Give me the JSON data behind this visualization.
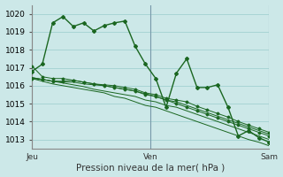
{
  "title": "",
  "xlabel": "Pression niveau de la mer( hPa )",
  "bg_color": "#cce8e8",
  "grid_color": "#99cccc",
  "line_color": "#1a6620",
  "ylim": [
    1012.5,
    1020.5
  ],
  "xlim": [
    0,
    48
  ],
  "yticks": [
    1013,
    1014,
    1015,
    1016,
    1017,
    1018,
    1019,
    1020
  ],
  "day_positions": [
    0,
    24,
    48
  ],
  "day_labels": [
    "Jeu",
    "Ven",
    "Sam"
  ],
  "series": [
    [
      1016.8,
      1017.2,
      1019.5,
      1019.85,
      1019.3,
      1019.5,
      1019.05,
      1019.35,
      1019.5,
      1019.6,
      1018.2,
      1017.2,
      1016.4,
      1014.8,
      1016.7,
      1017.5,
      1015.9,
      1015.9,
      1016.05,
      1014.8,
      1013.2,
      1013.5,
      1013.1,
      1012.85
    ],
    [
      1016.4,
      1016.35,
      1016.25,
      1016.25,
      1016.3,
      1016.2,
      1016.1,
      1016.05,
      1016.0,
      1015.9,
      1015.8,
      1015.6,
      1015.5,
      1015.3,
      1015.2,
      1015.1,
      1014.85,
      1014.65,
      1014.45,
      1014.25,
      1014.0,
      1013.8,
      1013.6,
      1013.4
    ],
    [
      1016.45,
      1016.35,
      1016.25,
      1016.15,
      1016.05,
      1015.95,
      1015.8,
      1015.7,
      1015.6,
      1015.5,
      1015.4,
      1015.2,
      1015.1,
      1014.9,
      1014.8,
      1014.6,
      1014.4,
      1014.2,
      1014.0,
      1013.8,
      1013.6,
      1013.4,
      1013.2,
      1013.0
    ],
    [
      1016.45,
      1016.35,
      1016.25,
      1016.2,
      1016.2,
      1016.1,
      1016.05,
      1016.0,
      1015.9,
      1015.8,
      1015.7,
      1015.55,
      1015.4,
      1015.2,
      1015.1,
      1014.9,
      1014.7,
      1014.5,
      1014.3,
      1014.1,
      1013.9,
      1013.7,
      1013.5,
      1013.3
    ],
    [
      1016.4,
      1016.25,
      1016.1,
      1016.0,
      1015.9,
      1015.8,
      1015.7,
      1015.6,
      1015.4,
      1015.3,
      1015.1,
      1014.9,
      1014.8,
      1014.6,
      1014.4,
      1014.2,
      1014.0,
      1013.8,
      1013.6,
      1013.4,
      1013.2,
      1013.0,
      1012.85,
      1012.65
    ],
    [
      1017.1,
      1016.5,
      1016.4,
      1016.4,
      1016.3,
      1016.2,
      1016.1,
      1016.0,
      1015.9,
      1015.8,
      1015.7,
      1015.5,
      1015.4,
      1015.2,
      1015.0,
      1014.8,
      1014.6,
      1014.4,
      1014.2,
      1014.0,
      1013.8,
      1013.6,
      1013.4,
      1013.2
    ]
  ],
  "series_styles": [
    {
      "marker": "D",
      "ms": 2.0,
      "lw": 1.0,
      "ls": "-"
    },
    {
      "marker": "D",
      "ms": 1.5,
      "lw": 0.7,
      "ls": "-"
    },
    {
      "marker": null,
      "ms": 0,
      "lw": 0.7,
      "ls": "-"
    },
    {
      "marker": null,
      "ms": 0,
      "lw": 0.7,
      "ls": "-"
    },
    {
      "marker": null,
      "ms": 0,
      "lw": 0.7,
      "ls": "-"
    },
    {
      "marker": "D",
      "ms": 1.5,
      "lw": 0.7,
      "ls": "-"
    }
  ],
  "xlabel_fontsize": 7.5,
  "tick_fontsize": 6.5
}
